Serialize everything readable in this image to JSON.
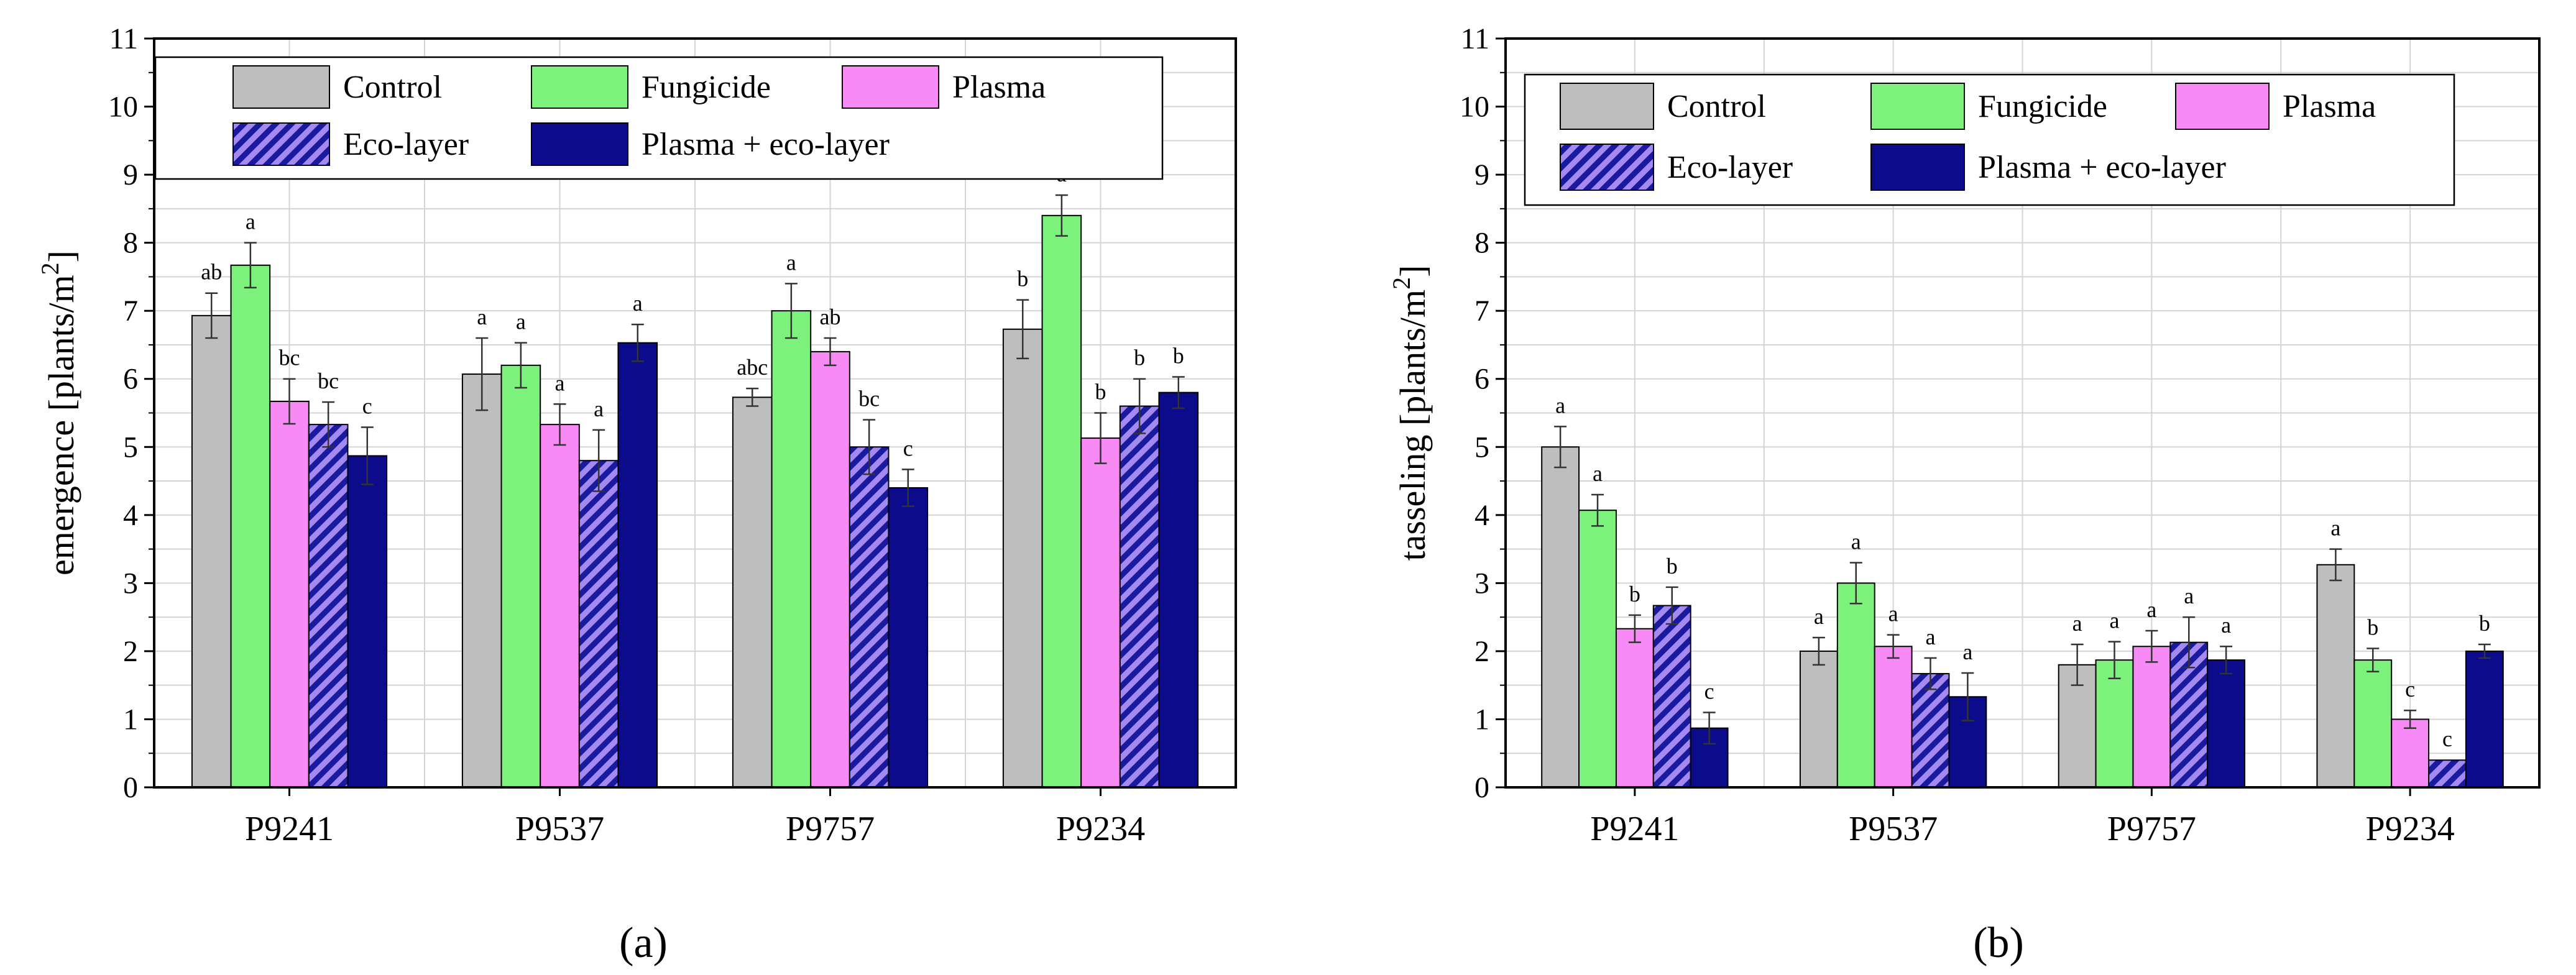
{
  "colors": {
    "control": "#bebebe",
    "fungicide": "#7cf27c",
    "plasma": "#f78af5",
    "eco_layer": "#a48af0",
    "eco_layer_hatch": "#1a1a9e",
    "plasma_eco": "#0b0b8c",
    "grid": "#d4d4d4",
    "axis": "#000000"
  },
  "legend": [
    "Control",
    "Fungicide",
    "Plasma",
    "Eco-layer",
    "Plasma + eco-layer"
  ],
  "panel_labels": [
    "(a)",
    "(b)"
  ],
  "chart_data": [
    {
      "type": "bar",
      "panel": "(a)",
      "title": "",
      "xlabel": "",
      "ylabel": "emergence [plants/m",
      "ylabel_sup": "2",
      "ylabel_end": "]",
      "ylim": [
        0,
        11
      ],
      "yticks": [
        0,
        1,
        2,
        3,
        4,
        5,
        6,
        7,
        8,
        9,
        10,
        11
      ],
      "grid": true,
      "legend_position": "top",
      "categories": [
        "P9241",
        "P9537",
        "P9757",
        "P9234"
      ],
      "series": [
        {
          "name": "Control",
          "values": [
            6.93,
            6.07,
            5.73,
            6.73
          ],
          "errors": [
            0.33,
            0.53,
            0.13,
            0.43
          ],
          "labels": [
            "ab",
            "a",
            "abc",
            "b"
          ]
        },
        {
          "name": "Fungicide",
          "values": [
            7.67,
            6.2,
            7.0,
            8.4
          ],
          "errors": [
            0.33,
            0.33,
            0.4,
            0.3
          ],
          "labels": [
            "a",
            "a",
            "a",
            "a"
          ]
        },
        {
          "name": "Plasma",
          "values": [
            5.67,
            5.33,
            6.4,
            5.13
          ],
          "errors": [
            0.33,
            0.3,
            0.2,
            0.37
          ],
          "labels": [
            "bc",
            "a",
            "ab",
            "b"
          ]
        },
        {
          "name": "Eco-layer",
          "values": [
            5.33,
            4.8,
            5.0,
            5.6
          ],
          "errors": [
            0.33,
            0.45,
            0.4,
            0.4
          ],
          "labels": [
            "bc",
            "a",
            "bc",
            "b"
          ]
        },
        {
          "name": "Plasma + eco-layer",
          "values": [
            4.87,
            6.53,
            4.4,
            5.8
          ],
          "errors": [
            0.42,
            0.27,
            0.27,
            0.23
          ],
          "labels": [
            "c",
            "a",
            "c",
            "b"
          ]
        }
      ]
    },
    {
      "type": "bar",
      "panel": "(b)",
      "title": "",
      "xlabel": "",
      "ylabel": "tasseling [plants/m",
      "ylabel_sup": "2",
      "ylabel_end": "]",
      "ylim": [
        0,
        11
      ],
      "yticks": [
        0,
        1,
        2,
        3,
        4,
        5,
        6,
        7,
        8,
        9,
        10,
        11
      ],
      "grid": true,
      "legend_position": "top",
      "categories": [
        "P9241",
        "P9537",
        "P9757",
        "P9234"
      ],
      "series": [
        {
          "name": "Control",
          "values": [
            5.0,
            2.0,
            1.8,
            3.27
          ],
          "errors": [
            0.3,
            0.2,
            0.3,
            0.23
          ],
          "labels": [
            "a",
            "a",
            "a",
            "a"
          ]
        },
        {
          "name": "Fungicide",
          "values": [
            4.07,
            3.0,
            1.87,
            1.87
          ],
          "errors": [
            0.23,
            0.3,
            0.27,
            0.17
          ],
          "labels": [
            "a",
            "a",
            "a",
            "b"
          ]
        },
        {
          "name": "Plasma",
          "values": [
            2.33,
            2.07,
            2.07,
            1.0
          ],
          "errors": [
            0.2,
            0.17,
            0.23,
            0.13
          ],
          "labels": [
            "b",
            "a",
            "a",
            "c"
          ]
        },
        {
          "name": "Eco-layer",
          "values": [
            2.67,
            1.67,
            2.13,
            0.4
          ],
          "errors": [
            0.27,
            0.23,
            0.37,
            0.0
          ],
          "labels": [
            "b",
            "a",
            "a",
            "c"
          ]
        },
        {
          "name": "Plasma + eco-layer",
          "values": [
            0.87,
            1.33,
            1.87,
            2.0
          ],
          "errors": [
            0.23,
            0.35,
            0.2,
            0.1
          ],
          "labels": [
            "c",
            "a",
            "a",
            "b"
          ]
        }
      ]
    }
  ]
}
